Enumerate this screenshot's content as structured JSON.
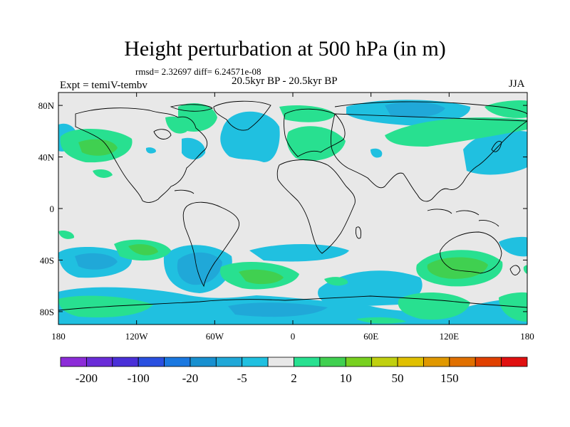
{
  "title": "Height perturbation at 500 hPa (in m)",
  "stats": "rmsd= 2.32697 diff= 6.24571e-08",
  "period": "20.5kyr BP - 20.5kyr BP",
  "experiment": "Expt = temiV-tembv",
  "season": "JJA",
  "lat_ticks": [
    {
      "label": "80N",
      "value": 80
    },
    {
      "label": "40N",
      "value": 40
    },
    {
      "label": "0",
      "value": 0
    },
    {
      "label": "40S",
      "value": -40
    },
    {
      "label": "80S",
      "value": -80
    }
  ],
  "lon_ticks": [
    {
      "label": "180",
      "value": -180
    },
    {
      "label": "120W",
      "value": -120
    },
    {
      "label": "60W",
      "value": -60
    },
    {
      "label": "0",
      "value": 0
    },
    {
      "label": "60E",
      "value": 60
    },
    {
      "label": "120E",
      "value": 120
    },
    {
      "label": "180",
      "value": 180
    }
  ],
  "colorbar": {
    "colors": [
      "#8c2cd8",
      "#6a2cd8",
      "#4a30d8",
      "#2a50e0",
      "#1a78e0",
      "#1890d0",
      "#20a8d8",
      "#20c0e0",
      "#e8e8e8",
      "#28e090",
      "#40d050",
      "#78d020",
      "#c0d010",
      "#e0c000",
      "#e09800",
      "#e07000",
      "#e04000",
      "#e01010"
    ],
    "labels": [
      {
        "text": "-200",
        "boundary": 1
      },
      {
        "text": "-100",
        "boundary": 3
      },
      {
        "text": "-20",
        "boundary": 5
      },
      {
        "text": "-5",
        "boundary": 7
      },
      {
        "text": "2",
        "boundary": 9
      },
      {
        "text": "10",
        "boundary": 11
      },
      {
        "text": "50",
        "boundary": 13
      },
      {
        "text": "150",
        "boundary": 15
      }
    ]
  },
  "palette": {
    "background": "#e8e8e8",
    "neg1": "#20c0e0",
    "neg2": "#20a8d8",
    "pos1": "#28e090",
    "pos2": "#40d050"
  }
}
